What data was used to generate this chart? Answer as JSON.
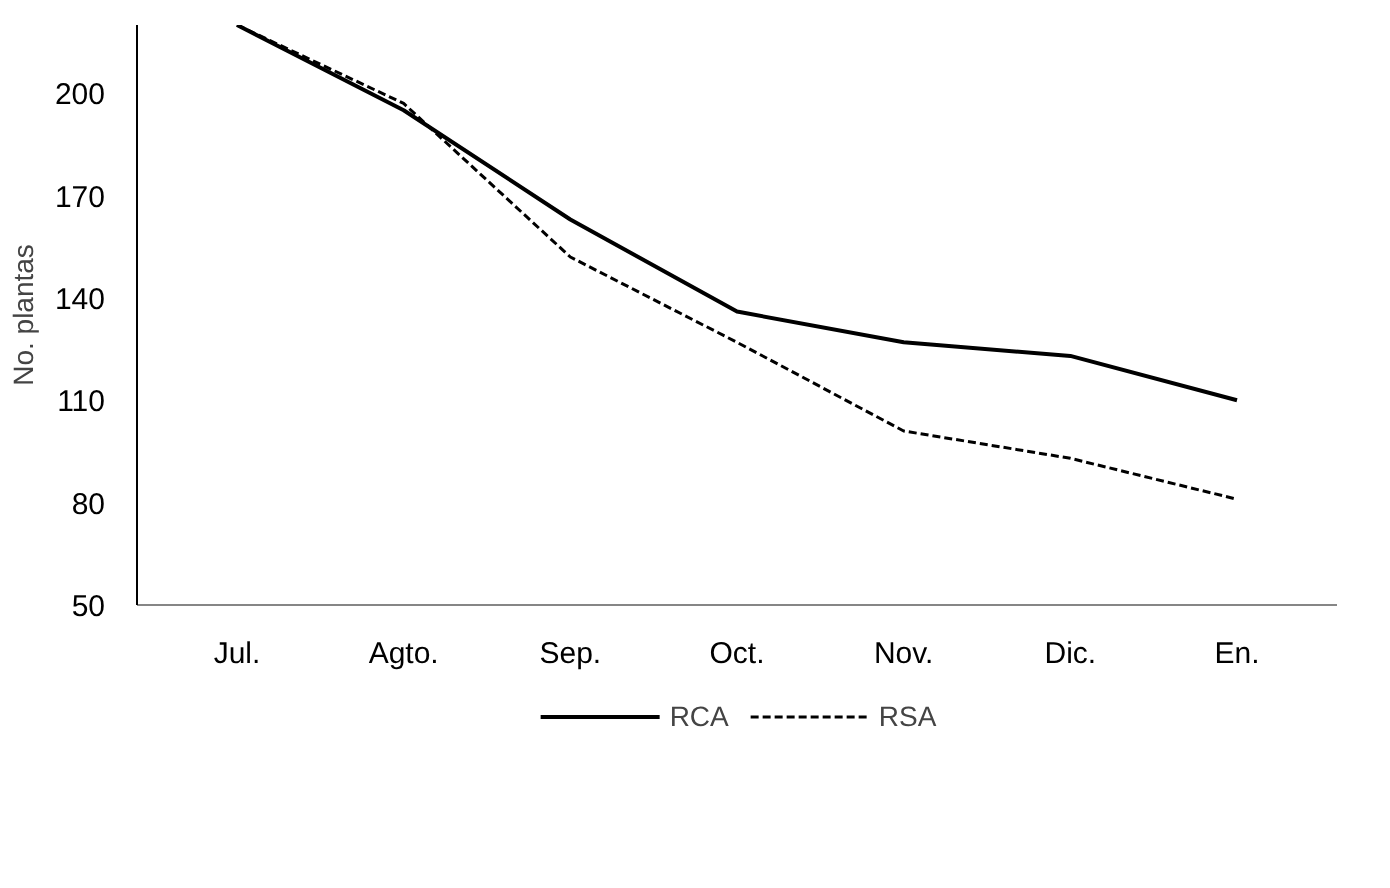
{
  "chart_data": {
    "type": "line",
    "ylabel": "No. plantas",
    "categories": [
      "Jul.",
      "Agto.",
      "Sep.",
      "Oct.",
      "Nov.",
      "Dic.",
      "En."
    ],
    "series": [
      {
        "name": "RCA",
        "color": "#000000",
        "line_style": "solid",
        "values": [
          220,
          195,
          163,
          136,
          127,
          123,
          110
        ]
      },
      {
        "name": "RSA",
        "color": "#000000",
        "line_style": "dashed",
        "values": [
          220,
          197,
          152,
          127,
          101,
          93,
          81
        ]
      }
    ],
    "ylim": [
      50,
      220
    ],
    "yticks": [
      50,
      80,
      110,
      140,
      170,
      200
    ],
    "grid": false,
    "legend": "bottom",
    "marker": "none"
  }
}
